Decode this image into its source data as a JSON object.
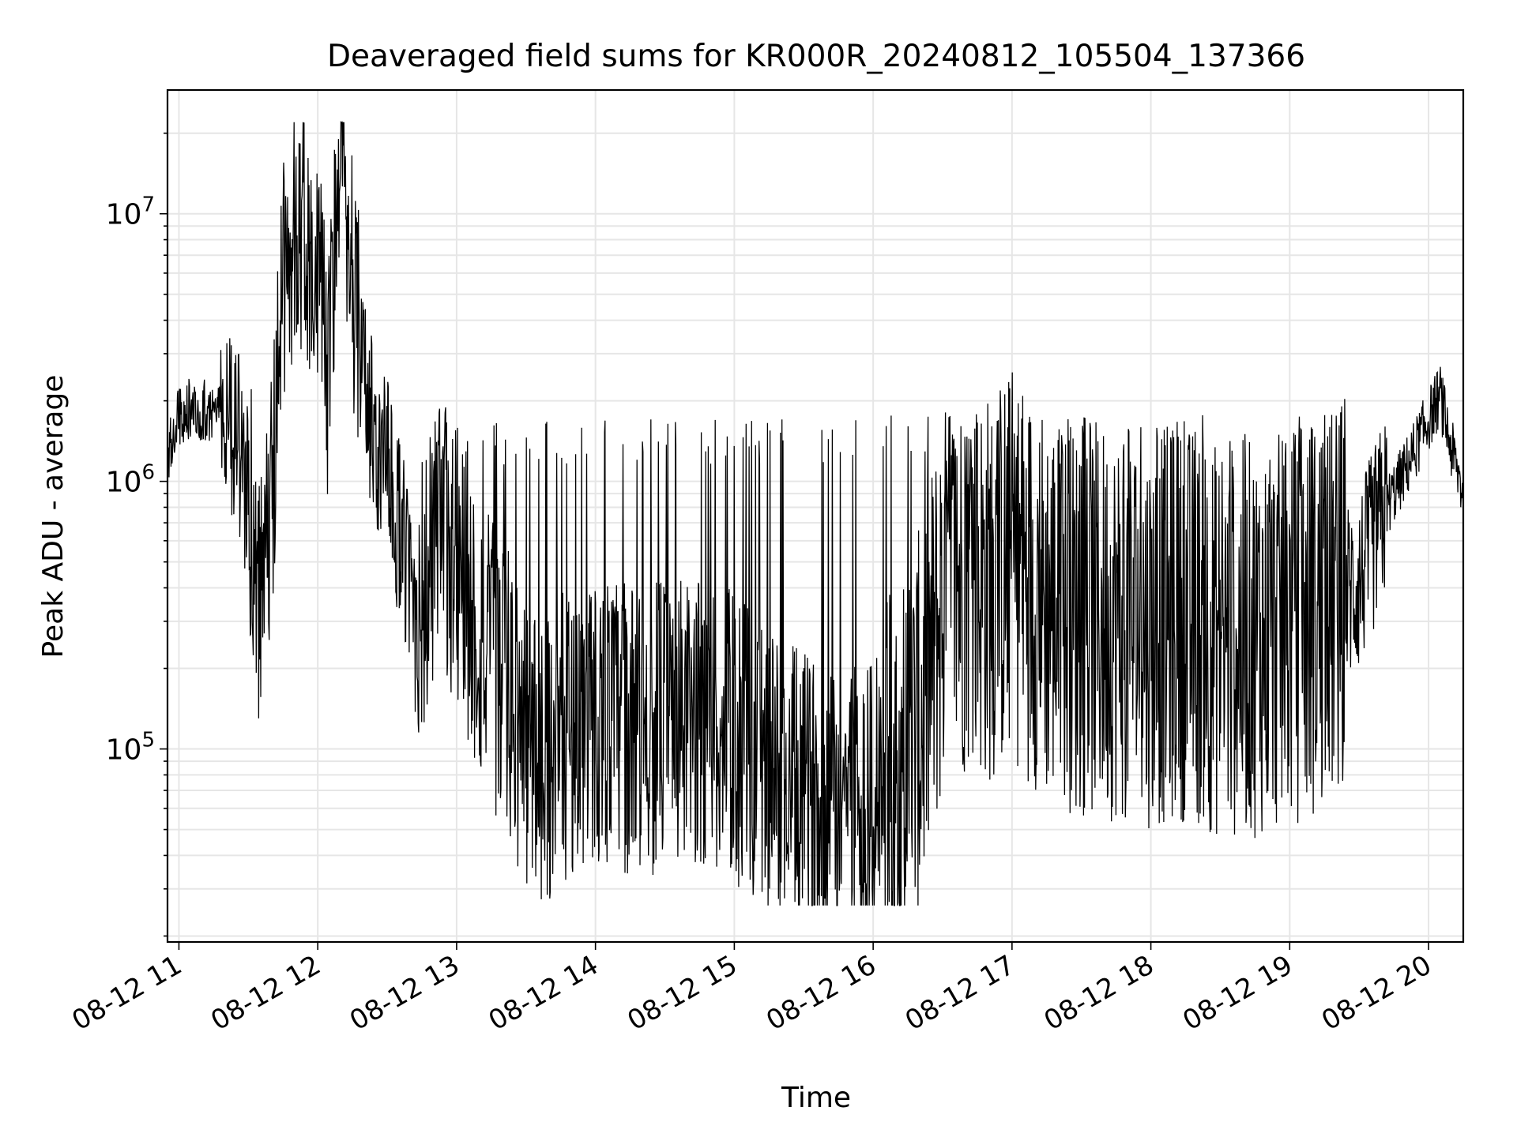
{
  "chart_data": {
    "type": "line",
    "title": "Deaveraged field sums for KR000R_20240812_105504_137366",
    "xlabel": "Time",
    "ylabel": "Peak ADU - average",
    "yscale": "log",
    "xlim": [
      "2024-08-12 10:55:04",
      "2024-08-12 20:15:00"
    ],
    "ylim": [
      19000,
      29000000
    ],
    "x_ticks": [
      {
        "label": "08-12 11",
        "time": "2024-08-12 11:00"
      },
      {
        "label": "08-12 12",
        "time": "2024-08-12 12:00"
      },
      {
        "label": "08-12 13",
        "time": "2024-08-12 13:00"
      },
      {
        "label": "08-12 14",
        "time": "2024-08-12 14:00"
      },
      {
        "label": "08-12 15",
        "time": "2024-08-12 15:00"
      },
      {
        "label": "08-12 16",
        "time": "2024-08-12 16:00"
      },
      {
        "label": "08-12 17",
        "time": "2024-08-12 17:00"
      },
      {
        "label": "08-12 18",
        "time": "2024-08-12 18:00"
      },
      {
        "label": "08-12 19",
        "time": "2024-08-12 19:00"
      },
      {
        "label": "08-12 20",
        "time": "2024-08-12 20:00"
      }
    ],
    "y_ticks": [
      {
        "base": "10",
        "exp": "5",
        "value": 100000
      },
      {
        "base": "10",
        "exp": "6",
        "value": 1000000
      },
      {
        "base": "10",
        "exp": "7",
        "value": 10000000
      }
    ],
    "grid": true,
    "line_color": "#000000",
    "grid_color": "#e6e6e6",
    "series": [
      {
        "x": [
          "10:55",
          "11:00",
          "11:05",
          "11:10",
          "11:15",
          "11:20",
          "11:25",
          "11:30",
          "11:35",
          "11:40",
          "11:45",
          "11:50",
          "11:55",
          "12:00",
          "12:05",
          "12:10",
          "12:15",
          "12:20",
          "12:25",
          "12:30",
          "12:35",
          "12:40",
          "12:45",
          "12:50",
          "12:55",
          "13:00",
          "13:10",
          "13:20",
          "13:30",
          "13:40",
          "13:50",
          "14:00",
          "14:10",
          "14:20",
          "14:30",
          "14:40",
          "14:50",
          "15:00",
          "15:10",
          "15:20",
          "15:30",
          "15:40",
          "15:50",
          "16:00",
          "16:10",
          "16:20",
          "16:30",
          "16:40",
          "16:50",
          "17:00",
          "17:15",
          "17:30",
          "17:45",
          "18:00",
          "18:15",
          "18:30",
          "18:45",
          "19:00",
          "19:15",
          "19:30",
          "19:40",
          "19:50",
          "20:00",
          "20:05",
          "20:10",
          "20:15"
        ],
        "y": [
          1200000,
          1800000,
          1900000,
          1850000,
          1750000,
          1700000,
          1500000,
          900000,
          350000,
          800000,
          5000000,
          8000000,
          7000000,
          5000000,
          2500000,
          15000000,
          5000000,
          2500000,
          1300000,
          1100000,
          700000,
          400000,
          350000,
          500000,
          600000,
          500000,
          250000,
          180000,
          100000,
          95000,
          120000,
          130000,
          125000,
          110000,
          130000,
          120000,
          130000,
          110000,
          90000,
          75000,
          65000,
          60000,
          70000,
          60000,
          70000,
          120000,
          350000,
          450000,
          400000,
          500000,
          350000,
          300000,
          300000,
          280000,
          300000,
          250000,
          260000,
          280000,
          320000,
          420000,
          750000,
          1100000,
          1700000,
          2100000,
          1300000,
          900000
        ]
      }
    ]
  }
}
